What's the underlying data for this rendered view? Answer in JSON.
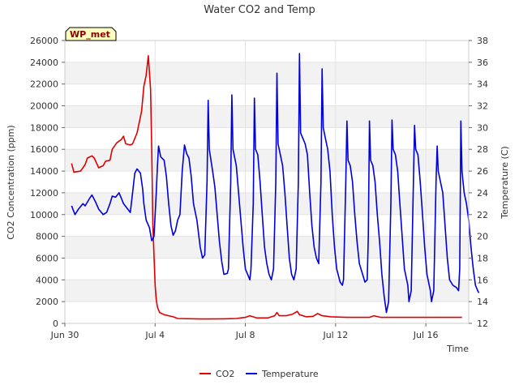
{
  "chart_data": {
    "type": "line",
    "title": "Water CO2 and Temp",
    "xlabel": "Time",
    "ylabel_left": "CO2 Concentration (ppm)",
    "ylabel_right": "Temperature (C)",
    "badge": "WP_met",
    "x_start": "Jun 30",
    "x_unit": "days since Jun 30",
    "xlim": [
      0,
      17.9
    ],
    "xticks": [
      {
        "x": 0,
        "label": "Jun 30"
      },
      {
        "x": 4,
        "label": "Jul 4"
      },
      {
        "x": 8,
        "label": "Jul 8"
      },
      {
        "x": 12,
        "label": "Jul 12"
      },
      {
        "x": 16,
        "label": "Jul 16"
      }
    ],
    "ylim_left": [
      0,
      26000
    ],
    "yticks_left": [
      0,
      2000,
      4000,
      6000,
      8000,
      10000,
      12000,
      14000,
      16000,
      18000,
      20000,
      22000,
      24000,
      26000
    ],
    "ylim_right": [
      12,
      38
    ],
    "yticks_right": [
      12,
      14,
      16,
      18,
      20,
      22,
      24,
      26,
      28,
      30,
      32,
      34,
      36,
      38
    ],
    "legend_position": "bottom-center",
    "background_bands": true,
    "series": [
      {
        "name": "CO2",
        "axis": "left",
        "color": "#e00000",
        "points": [
          [
            0.3,
            14700
          ],
          [
            0.4,
            13900
          ],
          [
            0.7,
            14000
          ],
          [
            0.9,
            14600
          ],
          [
            1.0,
            15200
          ],
          [
            1.2,
            15400
          ],
          [
            1.3,
            15200
          ],
          [
            1.5,
            14300
          ],
          [
            1.7,
            14500
          ],
          [
            1.8,
            14900
          ],
          [
            2.0,
            15000
          ],
          [
            2.1,
            16000
          ],
          [
            2.3,
            16600
          ],
          [
            2.5,
            16900
          ],
          [
            2.6,
            17200
          ],
          [
            2.7,
            16500
          ],
          [
            2.9,
            16400
          ],
          [
            3.0,
            16500
          ],
          [
            3.2,
            17500
          ],
          [
            3.4,
            19500
          ],
          [
            3.5,
            21800
          ],
          [
            3.6,
            22800
          ],
          [
            3.7,
            24600
          ],
          [
            3.8,
            21500
          ],
          [
            3.85,
            16000
          ],
          [
            3.9,
            9000
          ],
          [
            4.0,
            3500
          ],
          [
            4.05,
            2200
          ],
          [
            4.1,
            1500
          ],
          [
            4.2,
            1000
          ],
          [
            4.4,
            800
          ],
          [
            4.6,
            700
          ],
          [
            4.8,
            600
          ],
          [
            5.0,
            450
          ],
          [
            6.0,
            400
          ],
          [
            7.0,
            420
          ],
          [
            7.6,
            450
          ],
          [
            8.0,
            550
          ],
          [
            8.2,
            700
          ],
          [
            8.5,
            500
          ],
          [
            9.0,
            500
          ],
          [
            9.3,
            700
          ],
          [
            9.4,
            1000
          ],
          [
            9.5,
            700
          ],
          [
            9.8,
            700
          ],
          [
            10.1,
            850
          ],
          [
            10.3,
            1100
          ],
          [
            10.4,
            800
          ],
          [
            10.7,
            600
          ],
          [
            11.0,
            650
          ],
          [
            11.2,
            900
          ],
          [
            11.4,
            700
          ],
          [
            11.8,
            600
          ],
          [
            12.5,
            550
          ],
          [
            13.0,
            550
          ],
          [
            13.5,
            550
          ],
          [
            13.7,
            700
          ],
          [
            14.0,
            550
          ],
          [
            15.0,
            550
          ],
          [
            16.0,
            550
          ],
          [
            17.0,
            550
          ],
          [
            17.6,
            550
          ]
        ]
      },
      {
        "name": "Temperature",
        "axis": "right",
        "color": "#0000dd",
        "points": [
          [
            0.3,
            22.8
          ],
          [
            0.45,
            22.0
          ],
          [
            0.6,
            22.5
          ],
          [
            0.8,
            23.0
          ],
          [
            0.9,
            22.8
          ],
          [
            1.1,
            23.5
          ],
          [
            1.2,
            23.8
          ],
          [
            1.35,
            23.2
          ],
          [
            1.5,
            22.5
          ],
          [
            1.7,
            22.0
          ],
          [
            1.85,
            22.2
          ],
          [
            2.0,
            23.0
          ],
          [
            2.1,
            23.7
          ],
          [
            2.25,
            23.6
          ],
          [
            2.4,
            24.0
          ],
          [
            2.5,
            23.5
          ],
          [
            2.6,
            23.0
          ],
          [
            2.9,
            22.2
          ],
          [
            3.0,
            24.0
          ],
          [
            3.1,
            25.8
          ],
          [
            3.2,
            26.2
          ],
          [
            3.35,
            25.8
          ],
          [
            3.45,
            24.3
          ],
          [
            3.5,
            23.0
          ],
          [
            3.6,
            21.5
          ],
          [
            3.75,
            20.8
          ],
          [
            3.85,
            19.6
          ],
          [
            3.95,
            20.0
          ],
          [
            4.05,
            24.0
          ],
          [
            4.1,
            26.4
          ],
          [
            4.15,
            28.3
          ],
          [
            4.25,
            27.3
          ],
          [
            4.4,
            27.0
          ],
          [
            4.5,
            25.5
          ],
          [
            4.6,
            23.0
          ],
          [
            4.7,
            21.0
          ],
          [
            4.8,
            20.1
          ],
          [
            4.9,
            20.5
          ],
          [
            5.0,
            21.5
          ],
          [
            5.1,
            22.0
          ],
          [
            5.2,
            26.0
          ],
          [
            5.3,
            28.4
          ],
          [
            5.4,
            27.6
          ],
          [
            5.5,
            27.2
          ],
          [
            5.6,
            25.5
          ],
          [
            5.7,
            23.0
          ],
          [
            5.85,
            21.5
          ],
          [
            6.0,
            19.0
          ],
          [
            6.1,
            18.0
          ],
          [
            6.2,
            18.3
          ],
          [
            6.3,
            25.0
          ],
          [
            6.35,
            32.5
          ],
          [
            6.4,
            28.0
          ],
          [
            6.55,
            26.0
          ],
          [
            6.65,
            24.5
          ],
          [
            6.75,
            22.0
          ],
          [
            6.85,
            19.5
          ],
          [
            6.95,
            17.7
          ],
          [
            7.05,
            16.5
          ],
          [
            7.2,
            16.6
          ],
          [
            7.25,
            17.0
          ],
          [
            7.35,
            25.0
          ],
          [
            7.4,
            33.0
          ],
          [
            7.45,
            28.0
          ],
          [
            7.6,
            26.5
          ],
          [
            7.7,
            24.0
          ],
          [
            7.8,
            21.5
          ],
          [
            7.9,
            19.0
          ],
          [
            8.0,
            17.0
          ],
          [
            8.1,
            16.5
          ],
          [
            8.2,
            16.0
          ],
          [
            8.25,
            17.0
          ],
          [
            8.35,
            23.0
          ],
          [
            8.4,
            32.7
          ],
          [
            8.45,
            28.0
          ],
          [
            8.55,
            27.5
          ],
          [
            8.65,
            25.0
          ],
          [
            8.75,
            22.0
          ],
          [
            8.85,
            19.0
          ],
          [
            8.95,
            17.5
          ],
          [
            9.05,
            16.5
          ],
          [
            9.15,
            16.0
          ],
          [
            9.25,
            17.0
          ],
          [
            9.35,
            25.0
          ],
          [
            9.4,
            35.0
          ],
          [
            9.45,
            28.5
          ],
          [
            9.55,
            27.5
          ],
          [
            9.65,
            26.5
          ],
          [
            9.75,
            24.0
          ],
          [
            9.85,
            21.0
          ],
          [
            9.95,
            18.0
          ],
          [
            10.05,
            16.5
          ],
          [
            10.15,
            16.0
          ],
          [
            10.25,
            17.0
          ],
          [
            10.35,
            25.0
          ],
          [
            10.4,
            36.8
          ],
          [
            10.45,
            29.5
          ],
          [
            10.55,
            29.0
          ],
          [
            10.65,
            28.5
          ],
          [
            10.75,
            27.5
          ],
          [
            10.85,
            24.0
          ],
          [
            10.95,
            21.0
          ],
          [
            11.05,
            19.0
          ],
          [
            11.15,
            18.0
          ],
          [
            11.25,
            17.5
          ],
          [
            11.35,
            25.0
          ],
          [
            11.4,
            35.4
          ],
          [
            11.45,
            30.0
          ],
          [
            11.55,
            29.0
          ],
          [
            11.65,
            28.0
          ],
          [
            11.75,
            26.0
          ],
          [
            11.85,
            22.0
          ],
          [
            11.95,
            19.0
          ],
          [
            12.05,
            17.0
          ],
          [
            12.2,
            15.8
          ],
          [
            12.3,
            15.5
          ],
          [
            12.35,
            16.0
          ],
          [
            12.45,
            25.0
          ],
          [
            12.5,
            30.6
          ],
          [
            12.55,
            27.0
          ],
          [
            12.65,
            26.5
          ],
          [
            12.75,
            25.0
          ],
          [
            12.85,
            22.0
          ],
          [
            12.95,
            19.5
          ],
          [
            13.05,
            17.5
          ],
          [
            13.2,
            16.5
          ],
          [
            13.3,
            15.8
          ],
          [
            13.4,
            16.0
          ],
          [
            13.45,
            20.0
          ],
          [
            13.5,
            30.6
          ],
          [
            13.55,
            27.0
          ],
          [
            13.65,
            26.5
          ],
          [
            13.75,
            25.0
          ],
          [
            13.85,
            22.0
          ],
          [
            13.95,
            19.5
          ],
          [
            14.05,
            16.5
          ],
          [
            14.15,
            14.5
          ],
          [
            14.25,
            13.0
          ],
          [
            14.35,
            14.0
          ],
          [
            14.45,
            23.0
          ],
          [
            14.5,
            30.7
          ],
          [
            14.55,
            28.0
          ],
          [
            14.65,
            27.5
          ],
          [
            14.75,
            26.0
          ],
          [
            14.85,
            23.0
          ],
          [
            14.95,
            20.0
          ],
          [
            15.05,
            17.0
          ],
          [
            15.2,
            15.5
          ],
          [
            15.25,
            14.0
          ],
          [
            15.35,
            15.0
          ],
          [
            15.45,
            25.0
          ],
          [
            15.5,
            30.2
          ],
          [
            15.55,
            28.0
          ],
          [
            15.65,
            27.5
          ],
          [
            15.75,
            25.0
          ],
          [
            15.85,
            22.0
          ],
          [
            15.95,
            19.0
          ],
          [
            16.05,
            16.5
          ],
          [
            16.2,
            15.0
          ],
          [
            16.25,
            14.0
          ],
          [
            16.35,
            15.0
          ],
          [
            16.45,
            25.0
          ],
          [
            16.5,
            28.3
          ],
          [
            16.55,
            26.0
          ],
          [
            16.65,
            25.0
          ],
          [
            16.75,
            24.0
          ],
          [
            16.85,
            21.0
          ],
          [
            16.95,
            18.0
          ],
          [
            17.05,
            16.0
          ],
          [
            17.2,
            15.5
          ],
          [
            17.35,
            15.3
          ],
          [
            17.45,
            15.0
          ],
          [
            17.5,
            17.0
          ],
          [
            17.55,
            30.6
          ],
          [
            17.6,
            26.0
          ],
          [
            17.7,
            24.0
          ],
          [
            17.8,
            23.0
          ],
          [
            17.9,
            21.5
          ],
          [
            18.0,
            19.0
          ],
          [
            18.1,
            17.0
          ],
          [
            18.2,
            15.5
          ],
          [
            18.3,
            15.0
          ],
          [
            18.35,
            14.8
          ]
        ]
      }
    ]
  }
}
